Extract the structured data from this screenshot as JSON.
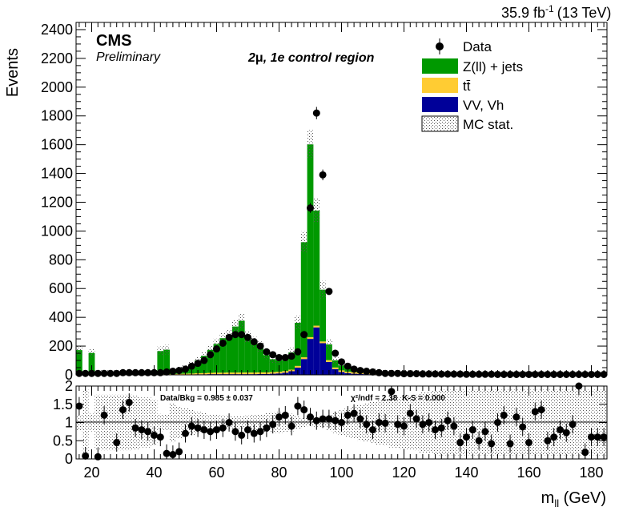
{
  "header": {
    "lumi": "35.9 fb",
    "lumi_exp": "-1",
    "energy": "(13 TeV)"
  },
  "labels": {
    "experiment": "CMS",
    "status": "Preliminary",
    "region_prefix": "2",
    "region_mu": "μ",
    "region_suffix": ", 1e control region",
    "ratio_text": "Data/Bkg = 0.985 ± 0.037",
    "chi2_text": "χ²/ndf = 2.38",
    "ks_text": "K-S = 0.000"
  },
  "colors": {
    "zjets": "#009900",
    "ttbar": "#ffcc33",
    "vv": "#000099",
    "data": "#000000"
  },
  "chart_data": [
    {
      "type": "bar",
      "stacked": true,
      "ylabel": "Events",
      "xlim": [
        15,
        185
      ],
      "ylim": [
        0,
        2450
      ],
      "yticks": [
        0,
        200,
        400,
        600,
        800,
        1000,
        1200,
        1400,
        1600,
        1800,
        2000,
        2200,
        2400
      ],
      "bin_width": 2,
      "x": [
        16,
        18,
        20,
        22,
        24,
        26,
        28,
        30,
        32,
        34,
        36,
        38,
        40,
        42,
        44,
        46,
        48,
        50,
        52,
        54,
        56,
        58,
        60,
        62,
        64,
        66,
        68,
        70,
        72,
        74,
        76,
        78,
        80,
        82,
        84,
        86,
        88,
        90,
        92,
        94,
        96,
        98,
        100,
        102,
        104,
        106,
        108,
        110,
        112,
        114,
        116,
        118,
        120,
        122,
        124,
        126,
        128,
        130,
        132,
        134,
        136,
        138,
        140,
        142,
        144,
        146,
        148,
        150,
        152,
        154,
        156,
        158,
        160,
        162,
        164,
        166,
        168,
        170,
        172,
        174,
        176,
        178,
        180,
        182,
        184
      ],
      "series": [
        {
          "name": "VV, Vh",
          "values": [
            1,
            1,
            1,
            1,
            1,
            1,
            1,
            1,
            1,
            1,
            1,
            1,
            2,
            2,
            2,
            2,
            3,
            3,
            3,
            4,
            4,
            5,
            5,
            5,
            5,
            5,
            5,
            5,
            5,
            6,
            6,
            8,
            10,
            15,
            25,
            50,
            110,
            250,
            330,
            220,
            90,
            40,
            20,
            12,
            8,
            6,
            5,
            4,
            3,
            3,
            2,
            2,
            2,
            2,
            2,
            1,
            1,
            1,
            1,
            1,
            1,
            1,
            1,
            1,
            1,
            1,
            1,
            1,
            1,
            1,
            1,
            1,
            1,
            1,
            1,
            1,
            1,
            1,
            1,
            1,
            1,
            1,
            1,
            1,
            1
          ]
        },
        {
          "name": "tt̄",
          "values": [
            1,
            1,
            1,
            1,
            1,
            1,
            1,
            1,
            1,
            2,
            2,
            2,
            2,
            3,
            3,
            3,
            4,
            5,
            6,
            7,
            8,
            9,
            10,
            10,
            11,
            11,
            11,
            11,
            11,
            11,
            11,
            11,
            11,
            11,
            11,
            12,
            12,
            12,
            12,
            12,
            12,
            11,
            11,
            10,
            10,
            9,
            9,
            8,
            8,
            7,
            7,
            6,
            6,
            6,
            5,
            5,
            5,
            4,
            4,
            4,
            4,
            3,
            3,
            3,
            3,
            3,
            3,
            3,
            2,
            2,
            2,
            2,
            2,
            2,
            2,
            2,
            2,
            2,
            2,
            2,
            2,
            2,
            1,
            1,
            1
          ]
        },
        {
          "name": "Z(ll) + jets",
          "values": [
            170,
            6,
            150,
            10,
            10,
            10,
            10,
            10,
            10,
            10,
            12,
            12,
            14,
            160,
            170,
            20,
            30,
            40,
            60,
            90,
            120,
            160,
            200,
            240,
            260,
            320,
            360,
            250,
            210,
            180,
            120,
            90,
            80,
            90,
            120,
            300,
            800,
            1340,
            800,
            360,
            110,
            50,
            35,
            25,
            20,
            15,
            12,
            10,
            8,
            8,
            6,
            6,
            5,
            5,
            5,
            4,
            4,
            4,
            3,
            3,
            3,
            3,
            3,
            3,
            3,
            2,
            2,
            2,
            2,
            2,
            2,
            2,
            2,
            2,
            2,
            2,
            2,
            2,
            2,
            2,
            2,
            2,
            2,
            2,
            2
          ]
        }
      ],
      "data_series": {
        "name": "Data",
        "values": [
          10,
          10,
          10,
          10,
          10,
          10,
          10,
          15,
          15,
          15,
          15,
          15,
          15,
          15,
          20,
          25,
          30,
          40,
          60,
          80,
          100,
          140,
          180,
          220,
          260,
          280,
          280,
          260,
          230,
          200,
          160,
          140,
          120,
          120,
          130,
          160,
          280,
          1160,
          1820,
          1390,
          580,
          150,
          90,
          60,
          40,
          30,
          25,
          20,
          15,
          10,
          10,
          10,
          8,
          8,
          8,
          6,
          6,
          6,
          5,
          5,
          5,
          5,
          4,
          4,
          4,
          4,
          4,
          3,
          3,
          3,
          3,
          3,
          3,
          3,
          3,
          3,
          3,
          3,
          3,
          3,
          3,
          3,
          3,
          3,
          3
        ]
      },
      "legend": {
        "placement": "top-right",
        "entries": [
          "Data",
          "Z(ll) + jets",
          "tt̄",
          "VV, Vh",
          "MC stat."
        ]
      }
    },
    {
      "type": "scatter",
      "xlabel_main": "m",
      "xlabel_sub": "ll",
      "xlabel_unit": " (GeV)",
      "xlim": [
        15,
        185
      ],
      "ylim": [
        0,
        2
      ],
      "yticks": [
        0,
        0.5,
        1,
        1.5,
        2
      ],
      "ytick_labels": [
        "0",
        "0.5",
        "1",
        "1.5",
        "2"
      ],
      "xticks": [
        20,
        40,
        60,
        80,
        100,
        120,
        140,
        160,
        180
      ],
      "reference_line": 1,
      "x": [
        16,
        18,
        22,
        24,
        28,
        30,
        32,
        34,
        36,
        38,
        40,
        42,
        44,
        46,
        48,
        50,
        52,
        54,
        56,
        58,
        60,
        62,
        64,
        66,
        68,
        70,
        72,
        74,
        76,
        78,
        80,
        82,
        84,
        86,
        88,
        90,
        92,
        94,
        96,
        98,
        100,
        102,
        104,
        106,
        108,
        110,
        112,
        114,
        116,
        118,
        120,
        122,
        124,
        126,
        128,
        130,
        132,
        134,
        136,
        138,
        140,
        142,
        144,
        146,
        148,
        150,
        152,
        154,
        156,
        158,
        160,
        162,
        164,
        166,
        168,
        170,
        172,
        174,
        176,
        178,
        180,
        182,
        184
      ],
      "values": [
        1.45,
        0.08,
        0.06,
        1.2,
        0.45,
        1.35,
        1.55,
        0.85,
        0.8,
        0.75,
        0.65,
        0.6,
        0.15,
        0.12,
        0.2,
        0.7,
        0.9,
        0.85,
        0.8,
        0.75,
        0.8,
        0.85,
        1.0,
        0.75,
        0.65,
        0.8,
        0.7,
        0.75,
        0.85,
        0.95,
        1.15,
        1.2,
        0.9,
        1.45,
        1.35,
        1.15,
        1.05,
        1.1,
        1.1,
        1.05,
        1.0,
        1.2,
        1.25,
        1.1,
        0.95,
        0.8,
        1.0,
        0.98,
        1.85,
        0.95,
        0.9,
        1.25,
        1.1,
        0.95,
        1.0,
        0.8,
        0.85,
        1.05,
        0.9,
        0.45,
        0.6,
        0.8,
        0.5,
        0.75,
        0.42,
        1.0,
        1.2,
        0.42,
        1.15,
        0.88,
        0.45,
        1.3,
        1.35,
        0.5,
        0.6,
        0.8,
        0.72,
        0.95,
        2.0,
        0.18,
        0.6,
        0.6,
        0.6
      ]
    }
  ]
}
